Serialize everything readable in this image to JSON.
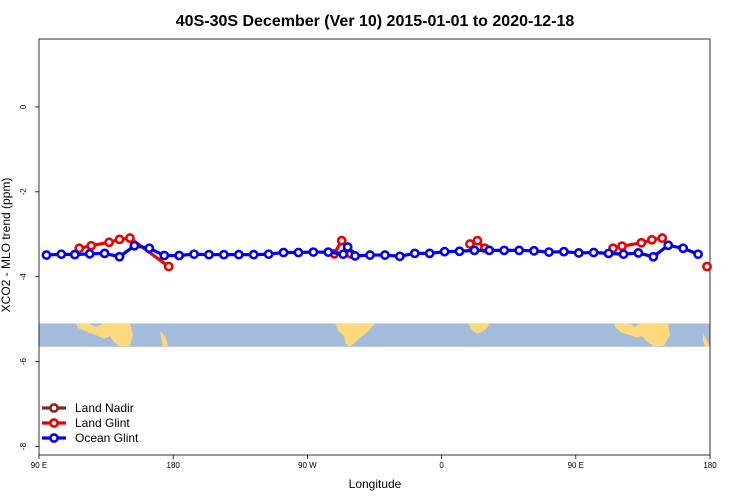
{
  "chart_data": {
    "type": "line",
    "title": "40S-30S December (Ver 10)   2015-01-01 to 2020-12-18",
    "xlabel": "Longitude",
    "ylabel": "XCO2 - MLO trend (ppm)",
    "xlim": [
      90,
      540
    ],
    "ylim": [
      -8.2,
      1.6
    ],
    "x_ticks": [
      {
        "value": 90,
        "label": "90 E"
      },
      {
        "value": 180,
        "label": "180"
      },
      {
        "value": 270,
        "label": "90 W"
      },
      {
        "value": 360,
        "label": "0"
      },
      {
        "value": 450,
        "label": "90 E"
      },
      {
        "value": 540,
        "label": "180"
      }
    ],
    "y_ticks": [
      {
        "value": 0,
        "label": "0"
      },
      {
        "value": -2,
        "label": "-2"
      },
      {
        "value": -4,
        "label": "-4"
      },
      {
        "value": -6,
        "label": "-6"
      },
      {
        "value": -8,
        "label": "-8"
      }
    ],
    "map_band": {
      "y_top": -5.1,
      "y_bottom": -5.65,
      "ocean_color": "#a5bbdc",
      "land_color": "#fcd97a"
    },
    "legend_position": "bottom-left",
    "series": [
      {
        "name": "Land Nadir",
        "color": "#8b2323",
        "points": []
      },
      {
        "name": "Land Glint",
        "color": "#ee0000",
        "segments": [
          [
            [
              117,
              -3.33
            ],
            [
              125,
              -3.27
            ],
            [
              137,
              -3.19
            ],
            [
              144,
              -3.12
            ],
            [
              151,
              -3.09
            ],
            [
              177,
              -3.76
            ]
          ],
          [
            [
              288,
              -3.46
            ],
            [
              293,
              -3.15
            ],
            [
              299,
              -3.46
            ]
          ],
          [
            [
              379,
              -3.23
            ],
            [
              384,
              -3.15
            ],
            [
              389,
              -3.33
            ]
          ],
          [
            [
              475,
              -3.33
            ],
            [
              481,
              -3.28
            ],
            [
              494,
              -3.2
            ],
            [
              501,
              -3.13
            ],
            [
              508,
              -3.09
            ]
          ],
          [
            [
              538,
              -3.76
            ]
          ]
        ]
      },
      {
        "name": "Ocean Glint",
        "color": "#0000ee",
        "segments": [
          [
            [
              95,
              -3.49
            ],
            [
              105,
              -3.47
            ],
            [
              114,
              -3.48
            ],
            [
              124,
              -3.46
            ],
            [
              134,
              -3.45
            ],
            [
              144,
              -3.53
            ],
            [
              154,
              -3.27
            ],
            [
              164,
              -3.33
            ],
            [
              174,
              -3.5
            ],
            [
              184,
              -3.5
            ],
            [
              194,
              -3.47
            ],
            [
              204,
              -3.48
            ],
            [
              214,
              -3.48
            ],
            [
              224,
              -3.48
            ],
            [
              234,
              -3.48
            ],
            [
              244,
              -3.47
            ],
            [
              254,
              -3.43
            ],
            [
              264,
              -3.43
            ],
            [
              274,
              -3.42
            ],
            [
              284,
              -3.42
            ],
            [
              294,
              -3.47
            ],
            [
              297,
              -3.3
            ],
            [
              302,
              -3.51
            ],
            [
              312,
              -3.49
            ],
            [
              322,
              -3.49
            ],
            [
              332,
              -3.52
            ],
            [
              342,
              -3.45
            ],
            [
              352,
              -3.45
            ],
            [
              362,
              -3.41
            ],
            [
              372,
              -3.4
            ],
            [
              382,
              -3.38
            ],
            [
              392,
              -3.38
            ],
            [
              402,
              -3.38
            ],
            [
              412,
              -3.38
            ],
            [
              422,
              -3.39
            ],
            [
              432,
              -3.42
            ],
            [
              442,
              -3.41
            ],
            [
              452,
              -3.44
            ],
            [
              462,
              -3.43
            ],
            [
              472,
              -3.45
            ],
            [
              482,
              -3.47
            ],
            [
              492,
              -3.44
            ],
            [
              502,
              -3.53
            ],
            [
              512,
              -3.26
            ],
            [
              522,
              -3.33
            ],
            [
              532,
              -3.47
            ]
          ]
        ]
      }
    ]
  }
}
